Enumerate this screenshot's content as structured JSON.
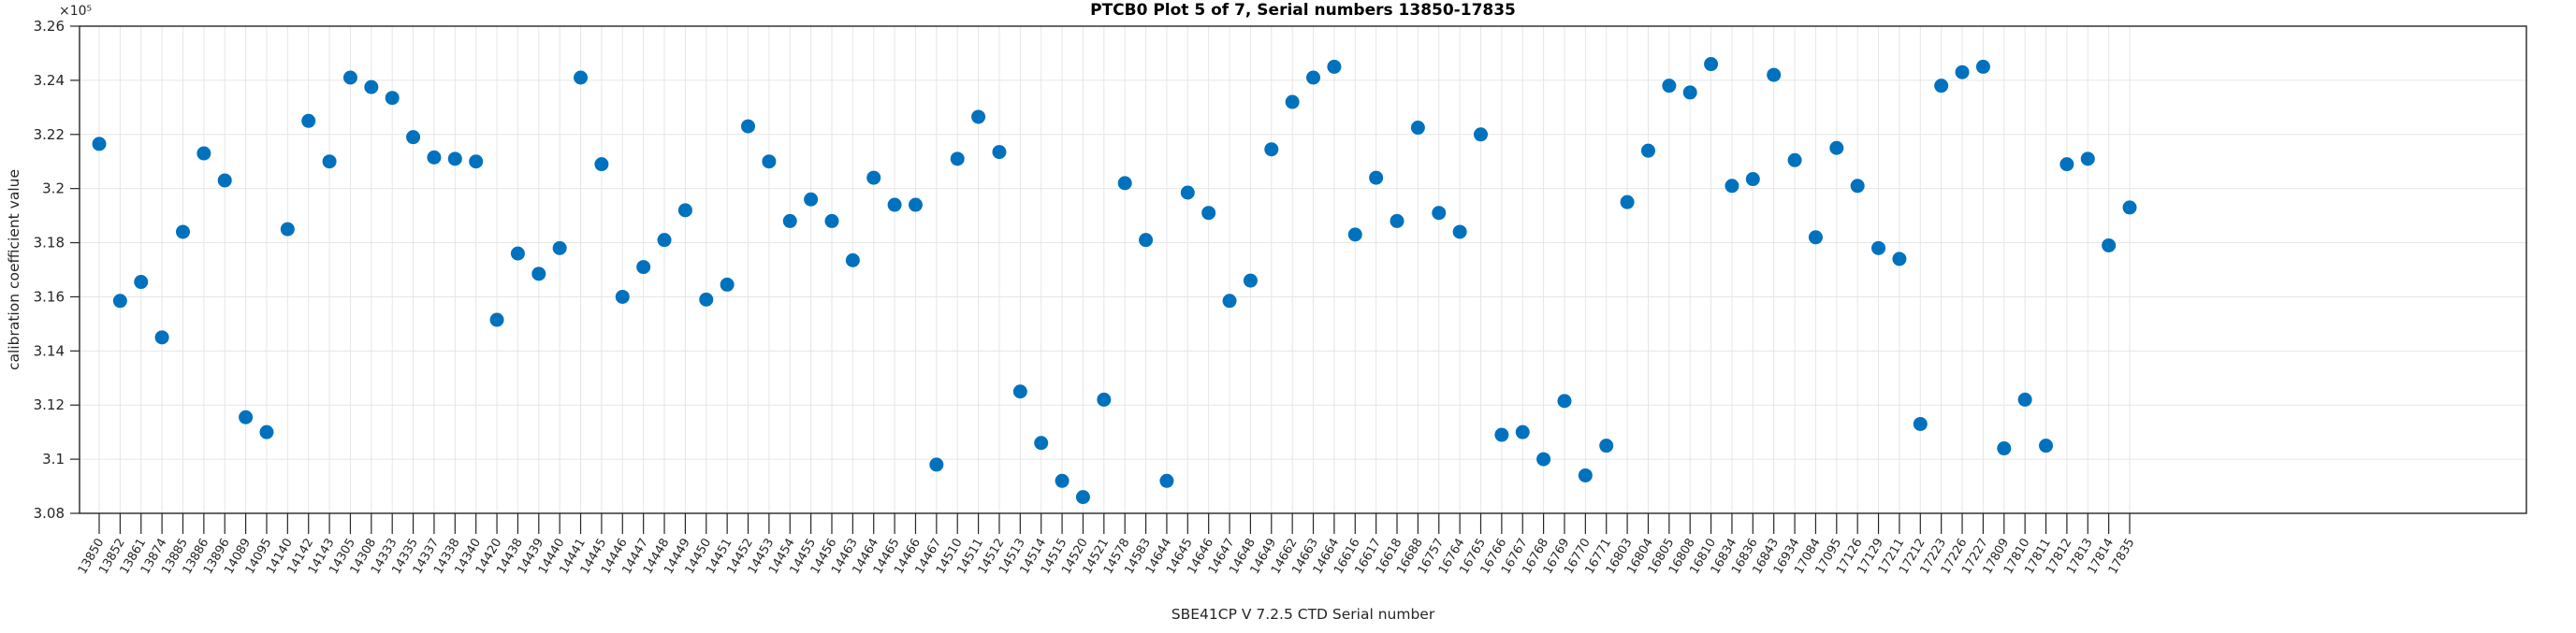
{
  "figure": {
    "title": "PTCB0 Plot 5 of 7, Serial numbers 13850-17835",
    "xlabel": "SBE41CP V 7.2.5 CTD Serial number",
    "ylabel": "calibration coefficient value",
    "exponent_label": "×10⁵"
  },
  "colors": {
    "marker": "#0072BD",
    "grid": "#e6e6e6",
    "axis": "#262626",
    "background": "#ffffff",
    "title": "#000000"
  },
  "chart_data": {
    "type": "scatter",
    "title": "PTCB0 Plot 5 of 7, Serial numbers 13850-17835",
    "xlabel": "SBE41CP V 7.2.5 CTD Serial number",
    "ylabel": "calibration coefficient value",
    "value_scale": "1e5",
    "ylim": [
      3.08,
      3.26
    ],
    "y_ticks": [
      "3.26",
      "3.24",
      "3.22",
      "3.2",
      "3.18",
      "3.16",
      "3.14",
      "3.12",
      "3.1",
      "3.08"
    ],
    "grid": "on",
    "legend": "none",
    "marker": "filled-circle",
    "categories": [
      "13850",
      "13852",
      "13861",
      "13874",
      "13885",
      "13886",
      "13896",
      "14089",
      "14095",
      "14140",
      "14142",
      "14143",
      "14305",
      "14308",
      "14333",
      "14335",
      "14337",
      "14338",
      "14340",
      "14420",
      "14438",
      "14439",
      "14440",
      "14441",
      "14445",
      "14446",
      "14447",
      "14448",
      "14449",
      "14450",
      "14451",
      "14452",
      "14453",
      "14454",
      "14455",
      "14456",
      "14463",
      "14464",
      "14465",
      "14466",
      "14467",
      "14510",
      "14511",
      "14512",
      "14513",
      "14514",
      "14515",
      "14520",
      "14521",
      "14578",
      "14583",
      "14644",
      "14645",
      "14646",
      "14647",
      "14648",
      "14649",
      "14662",
      "14663",
      "14664",
      "16616",
      "16617",
      "16618",
      "16688",
      "16757",
      "16764",
      "16765",
      "16766",
      "16767",
      "16768",
      "16769",
      "16770",
      "16771",
      "16803",
      "16804",
      "16805",
      "16808",
      "16810",
      "16834",
      "16836",
      "16843",
      "16934",
      "17084",
      "17095",
      "17126",
      "17129",
      "17211",
      "17212",
      "17223",
      "17226",
      "17227",
      "17809",
      "17810",
      "17811",
      "17812",
      "17813",
      "17814",
      "17835"
    ],
    "values": [
      3.2165,
      3.1585,
      3.1655,
      3.145,
      3.184,
      3.213,
      3.203,
      3.1155,
      3.11,
      3.185,
      3.225,
      3.21,
      3.241,
      3.2375,
      3.2335,
      3.219,
      3.2115,
      3.211,
      3.21,
      3.1515,
      3.176,
      3.1685,
      3.178,
      3.241,
      3.209,
      3.16,
      3.171,
      3.181,
      3.192,
      3.159,
      3.1645,
      3.223,
      3.21,
      3.188,
      3.196,
      3.188,
      3.1735,
      3.204,
      3.194,
      3.194,
      3.098,
      3.211,
      3.2265,
      3.2135,
      3.125,
      3.106,
      3.092,
      3.086,
      3.122,
      3.202,
      3.181,
      3.092,
      3.1985,
      3.191,
      3.1585,
      3.166,
      3.2145,
      3.232,
      3.241,
      3.245,
      3.183,
      3.204,
      3.188,
      3.2225,
      3.191,
      3.184,
      3.22,
      3.109,
      3.11,
      3.1,
      3.1215,
      3.094,
      3.105,
      3.195,
      3.214,
      3.238,
      3.2355,
      3.246,
      3.201,
      3.2035,
      3.242,
      3.2105,
      3.182,
      3.215,
      3.201,
      3.178,
      3.174,
      3.113,
      3.238,
      3.243,
      3.245,
      3.104,
      3.122,
      3.105,
      3.209,
      3.211,
      3.179,
      3.193
    ]
  },
  "layout_note": "single axes, no legend, gridlines on, x tick labels rotated"
}
